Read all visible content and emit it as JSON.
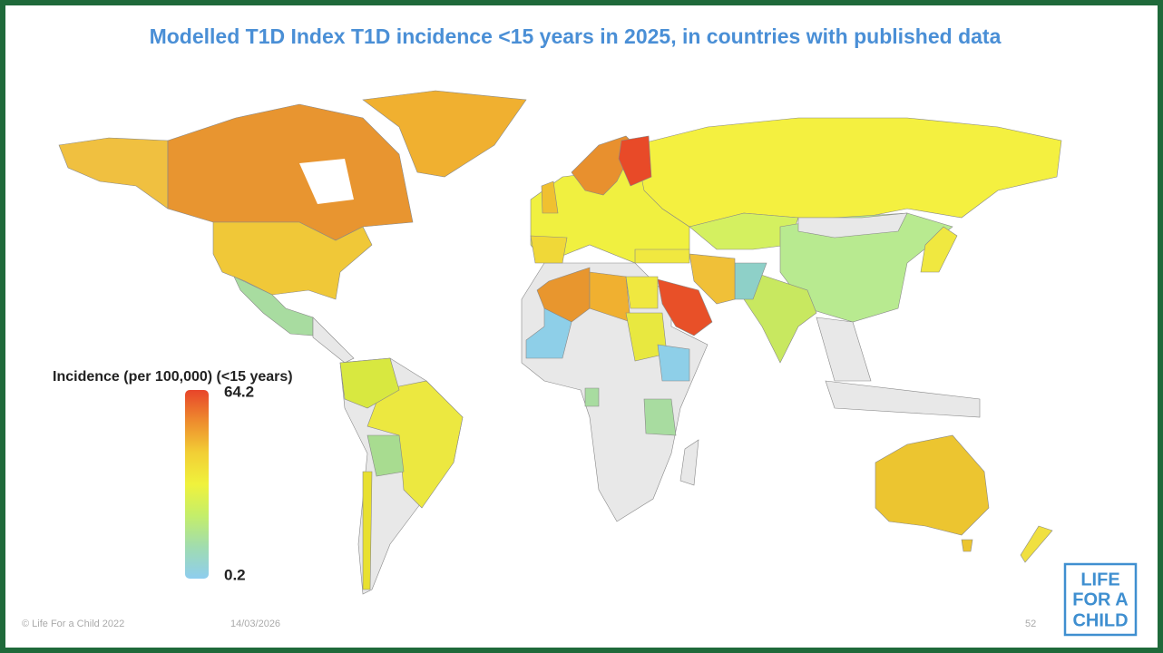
{
  "title": "Modelled T1D Index T1D incidence <15 years in 2025, in countries with published data",
  "legend": {
    "title": "Incidence (per 100,000) (<15 years)",
    "max": 64.2,
    "min": 0.2,
    "colors": [
      "#e8452a",
      "#ee8c2e",
      "#f2cf35",
      "#f0f23c",
      "#c4ee6a",
      "#a0dcb0",
      "#8ecdef"
    ]
  },
  "footer": {
    "copyright": "© Life For a Child 2022",
    "date": "14/03/2026",
    "page": "52"
  },
  "logo": {
    "lines": [
      "LIFE",
      "FOR A",
      "CHILD"
    ]
  }
}
